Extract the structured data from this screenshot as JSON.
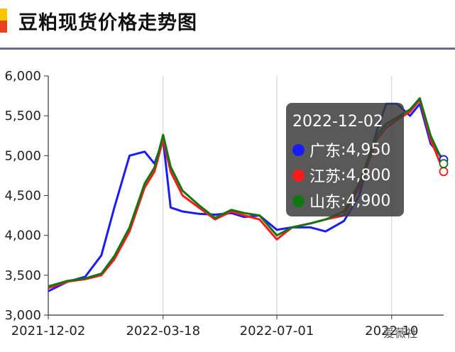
{
  "page": {
    "title": "豆粕现货价格走势图"
  },
  "chart_data": {
    "type": "line",
    "title": "豆粕现货价格走势图",
    "x_axis_labels": [
      "2021-12-02",
      "2022-03-18",
      "2022-07-01",
      "2022-10"
    ],
    "xlim": [
      "2021-12-02",
      "2022-12-02"
    ],
    "ylim": [
      3000,
      6000
    ],
    "yticks": [
      3000,
      3500,
      4000,
      4500,
      5000,
      5500,
      6000
    ],
    "ytick_labels": [
      "3,000",
      "3,500",
      "4,000",
      "4,500",
      "5,000",
      "5,500",
      "6,000"
    ],
    "grid": "vertical lines at x labels",
    "x": [
      "2021-12-02",
      "2021-12-20",
      "2022-01-05",
      "2022-01-20",
      "2022-02-01",
      "2022-02-15",
      "2022-03-01",
      "2022-03-10",
      "2022-03-18",
      "2022-03-25",
      "2022-04-05",
      "2022-04-20",
      "2022-05-05",
      "2022-05-20",
      "2022-06-01",
      "2022-06-15",
      "2022-07-01",
      "2022-07-15",
      "2022-08-01",
      "2022-08-15",
      "2022-09-01",
      "2022-09-15",
      "2022-10-01",
      "2022-10-10",
      "2022-10-20",
      "2022-11-01",
      "2022-11-10",
      "2022-11-20",
      "2022-12-02"
    ],
    "series": [
      {
        "name": "广东",
        "color": "#1a1aff",
        "values": [
          3300,
          3420,
          3480,
          3750,
          4350,
          5000,
          5050,
          4900,
          5200,
          4350,
          4300,
          4270,
          4260,
          4280,
          4230,
          4250,
          4070,
          4100,
          4100,
          4050,
          4180,
          4500,
          5300,
          5650,
          5650,
          5500,
          5650,
          5150,
          4950
        ]
      },
      {
        "name": "江苏",
        "color": "#ff1a1a",
        "values": [
          3340,
          3420,
          3450,
          3500,
          3700,
          4050,
          4600,
          4800,
          5200,
          4800,
          4500,
          4350,
          4200,
          4300,
          4250,
          4200,
          3950,
          4100,
          4150,
          4200,
          4250,
          4600,
          5200,
          5350,
          5450,
          5550,
          5700,
          5200,
          4800
        ]
      },
      {
        "name": "山东",
        "color": "#117711",
        "values": [
          3360,
          3430,
          3460,
          3520,
          3740,
          4100,
          4650,
          4850,
          5260,
          4860,
          4560,
          4380,
          4220,
          4320,
          4280,
          4250,
          4000,
          4100,
          4150,
          4200,
          4300,
          4650,
          5250,
          5400,
          5480,
          5580,
          5720,
          5250,
          4900
        ]
      }
    ],
    "tooltip": {
      "date": "2022-12-02",
      "items": [
        {
          "name": "广东",
          "value": "4,950",
          "color": "#1a1aff"
        },
        {
          "name": "江苏",
          "value": "4,800",
          "color": "#ff1a1a"
        },
        {
          "name": "山东",
          "value": "4,900",
          "color": "#117711"
        }
      ]
    }
  },
  "watermark": "爱薇社"
}
